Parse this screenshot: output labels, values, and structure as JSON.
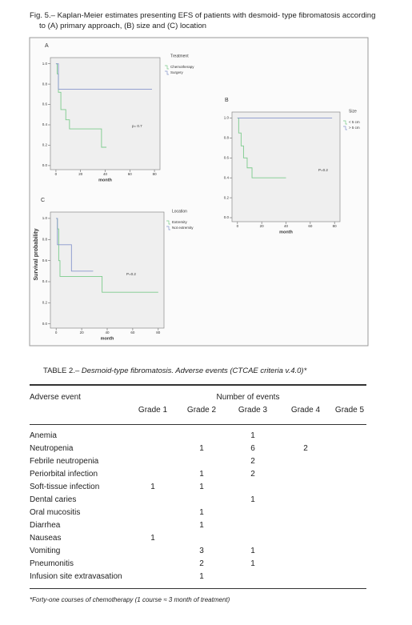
{
  "figure_caption": "Fig. 5.– Kaplan-Meier estimates presenting EFS of patients with desmoid- type fibromatosis according to (A) primary approach, (B) size and (C) location",
  "chart_data": [
    {
      "type": "line",
      "panel": "A",
      "xlabel": "month",
      "legend_title": "Treatment",
      "annotation": "p= 0.7",
      "xlim": [
        -4.5,
        84.5
      ],
      "ylim": [
        -0.04,
        1.06
      ],
      "xticks": [
        0,
        20,
        40,
        60,
        80
      ],
      "yticks": [
        {
          "value": 0,
          "label": "0.0"
        },
        0.2,
        0.4,
        0.6,
        0.8,
        {
          "value": 1,
          "label": "1.0"
        }
      ],
      "series": [
        {
          "name": "Chemotherapy",
          "color": "#7ccb8c",
          "x": [
            0,
            1,
            1,
            2,
            2,
            4,
            4,
            8,
            8,
            11,
            11,
            37,
            37,
            41
          ],
          "values": [
            1,
            1,
            0.9,
            0.9,
            0.72,
            0.72,
            0.55,
            0.55,
            0.45,
            0.45,
            0.36,
            0.36,
            0.18,
            0.18
          ]
        },
        {
          "name": "Surgery",
          "color": "#8796cc",
          "x": [
            0,
            2,
            2,
            78
          ],
          "values": [
            1,
            1,
            0.75,
            0.75
          ]
        }
      ]
    },
    {
      "type": "line",
      "panel": "B",
      "xlabel": "month",
      "legend_title": "Size",
      "annotation": "P=0.2",
      "xlim": [
        -4.5,
        84.5
      ],
      "ylim": [
        -0.04,
        1.06
      ],
      "xticks": [
        0,
        20,
        40,
        60,
        80
      ],
      "yticks": [
        {
          "value": 0,
          "label": "0.0"
        },
        0.2,
        0.4,
        0.6,
        0.8,
        {
          "value": 1,
          "label": "1.0"
        }
      ],
      "series": [
        {
          "name": "< 5 cm",
          "color": "#7ccb8c",
          "x": [
            0,
            1,
            1,
            3,
            3,
            5,
            5,
            8,
            8,
            12,
            12,
            40
          ],
          "values": [
            1,
            1,
            0.85,
            0.85,
            0.72,
            0.72,
            0.6,
            0.6,
            0.5,
            0.5,
            0.4,
            0.4
          ]
        },
        {
          "name": "> 5 cm",
          "color": "#8796cc",
          "x": [
            0,
            78
          ],
          "values": [
            1,
            1
          ]
        }
      ]
    },
    {
      "type": "line",
      "panel": "C",
      "xlabel": "month",
      "ylabel": "Survival probability",
      "legend_title": "Location",
      "annotation": "P=0.2",
      "xlim": [
        -4.5,
        84.5
      ],
      "ylim": [
        -0.04,
        1.06
      ],
      "xticks": [
        0,
        20,
        40,
        60,
        80
      ],
      "yticks": [
        {
          "value": 0,
          "label": "0.0"
        },
        0.2,
        0.4,
        0.6,
        0.8,
        {
          "value": 1,
          "label": "1.0"
        }
      ],
      "series": [
        {
          "name": "Extremity",
          "color": "#7ccb8c",
          "x": [
            0,
            1,
            1,
            2,
            2,
            3,
            3,
            36,
            36,
            80
          ],
          "values": [
            1,
            1,
            0.9,
            0.9,
            0.6,
            0.6,
            0.45,
            0.45,
            0.3,
            0.3
          ]
        },
        {
          "name": "Not extremity",
          "color": "#8796cc",
          "x": [
            0,
            1,
            1,
            12,
            12,
            29
          ],
          "values": [
            1,
            1,
            0.75,
            0.75,
            0.5,
            0.5
          ]
        }
      ]
    }
  ],
  "table": {
    "title_prefix": "TABLE 2.–",
    "title": "Desmoid-type fibromatosis. Adverse events (CTCAE criteria v.4.0)*",
    "row_header": "Adverse event",
    "group_header": "Number of events",
    "columns": [
      "Grade 1",
      "Grade 2",
      "Grade 3",
      "Grade 4",
      "Grade 5"
    ],
    "rows": [
      {
        "event": "Anemia",
        "counts": [
          null,
          null,
          1,
          null,
          null
        ]
      },
      {
        "event": "Neutropenia",
        "counts": [
          null,
          1,
          6,
          2,
          null
        ]
      },
      {
        "event": "Febrile neutropenia",
        "counts": [
          null,
          null,
          2,
          null,
          null
        ]
      },
      {
        "event": "Periorbital infection",
        "counts": [
          null,
          1,
          2,
          null,
          null
        ]
      },
      {
        "event": "Soft-tissue infection",
        "counts": [
          1,
          1,
          null,
          null,
          null
        ]
      },
      {
        "event": "Dental caries",
        "counts": [
          null,
          null,
          1,
          null,
          null
        ]
      },
      {
        "event": "Oral mucositis",
        "counts": [
          null,
          1,
          null,
          null,
          null
        ]
      },
      {
        "event": "Diarrhea",
        "counts": [
          null,
          1,
          null,
          null,
          null
        ]
      },
      {
        "event": "Nauseas",
        "counts": [
          1,
          null,
          null,
          null,
          null
        ]
      },
      {
        "event": "Vomiting",
        "counts": [
          null,
          3,
          1,
          null,
          null
        ]
      },
      {
        "event": "Pneumonitis",
        "counts": [
          null,
          2,
          1,
          null,
          null
        ]
      },
      {
        "event": "Infusion site extravasation",
        "counts": [
          null,
          1,
          null,
          null,
          null
        ]
      }
    ],
    "footnote": "*Forty-one courses of chemotherapy (1 course ≈ 3 month of treatment)"
  }
}
